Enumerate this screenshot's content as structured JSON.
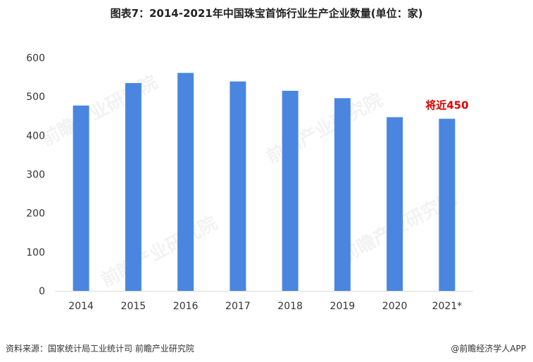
{
  "title": "图表7：2014-2021年中国珠宝首饰行业生产企业数量(单位：家)",
  "chart_data": {
    "type": "bar",
    "categories": [
      "2014",
      "2015",
      "2016",
      "2017",
      "2018",
      "2019",
      "2020",
      "2021*"
    ],
    "values": [
      477,
      535,
      561,
      539,
      515,
      496,
      447,
      443
    ],
    "ylim": [
      0,
      600
    ],
    "yticks": [
      "0",
      "100",
      "200",
      "300",
      "400",
      "500",
      "600"
    ],
    "grid": false,
    "bar_color": "#4a86e0",
    "annotation": {
      "text": "将近450",
      "category": "2021*",
      "color": "#e00000"
    }
  },
  "watermark": "前瞻产业研究院",
  "footer": {
    "source": "资料来源：国家统计局工业统计司 前瞻产业研究院",
    "brand": "@前瞻经济学人APP"
  }
}
